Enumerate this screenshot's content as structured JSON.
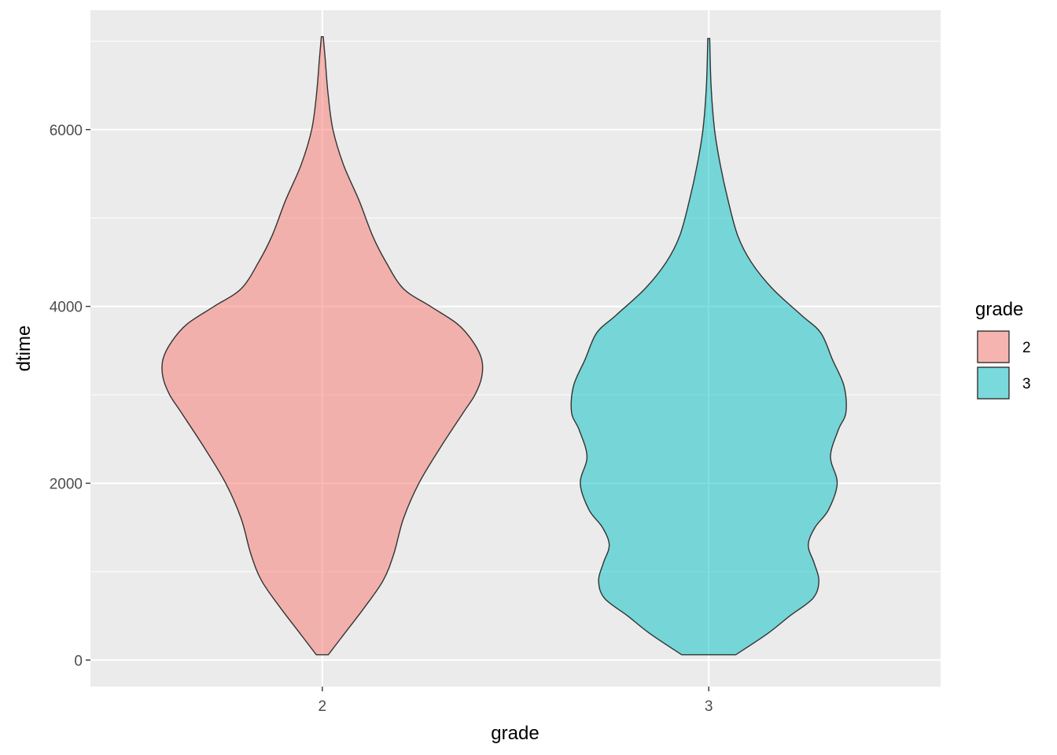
{
  "chart_data": {
    "type": "violin",
    "xlabel": "grade",
    "ylabel": "dtime",
    "categories": [
      "2",
      "3"
    ],
    "ylim": [
      -300,
      7350
    ],
    "yticks": [
      0,
      2000,
      4000,
      6000
    ],
    "grid": true,
    "legend": {
      "title": "grade",
      "position": "right",
      "entries": [
        "2",
        "3"
      ]
    },
    "colors": {
      "2": "#F8766D",
      "3": "#00BFC4"
    },
    "fill_alpha": 0.5,
    "series": [
      {
        "category": "2",
        "profile": [
          [
            60,
            0.031
          ],
          [
            300,
            0.115
          ],
          [
            600,
            0.22
          ],
          [
            900,
            0.315
          ],
          [
            1200,
            0.37
          ],
          [
            1600,
            0.42
          ],
          [
            2000,
            0.5
          ],
          [
            2400,
            0.61
          ],
          [
            2800,
            0.73
          ],
          [
            3000,
            0.79
          ],
          [
            3200,
            0.825
          ],
          [
            3400,
            0.825
          ],
          [
            3600,
            0.78
          ],
          [
            3800,
            0.7
          ],
          [
            4000,
            0.56
          ],
          [
            4200,
            0.42
          ],
          [
            4500,
            0.33
          ],
          [
            4800,
            0.26
          ],
          [
            5200,
            0.19
          ],
          [
            5600,
            0.11
          ],
          [
            6000,
            0.055
          ],
          [
            6400,
            0.03
          ],
          [
            6800,
            0.015
          ],
          [
            7050,
            0.005
          ]
        ]
      },
      {
        "category": "3",
        "profile": [
          [
            60,
            0.14
          ],
          [
            300,
            0.305
          ],
          [
            500,
            0.42
          ],
          [
            700,
            0.54
          ],
          [
            900,
            0.57
          ],
          [
            1100,
            0.545
          ],
          [
            1300,
            0.515
          ],
          [
            1500,
            0.55
          ],
          [
            1700,
            0.62
          ],
          [
            2000,
            0.665
          ],
          [
            2300,
            0.63
          ],
          [
            2600,
            0.67
          ],
          [
            2800,
            0.71
          ],
          [
            3100,
            0.7
          ],
          [
            3400,
            0.64
          ],
          [
            3700,
            0.58
          ],
          [
            3900,
            0.48
          ],
          [
            4200,
            0.33
          ],
          [
            4500,
            0.22
          ],
          [
            4800,
            0.15
          ],
          [
            5200,
            0.1
          ],
          [
            5600,
            0.06
          ],
          [
            6000,
            0.03
          ],
          [
            6500,
            0.012
          ],
          [
            7030,
            0.005
          ]
        ]
      }
    ]
  }
}
